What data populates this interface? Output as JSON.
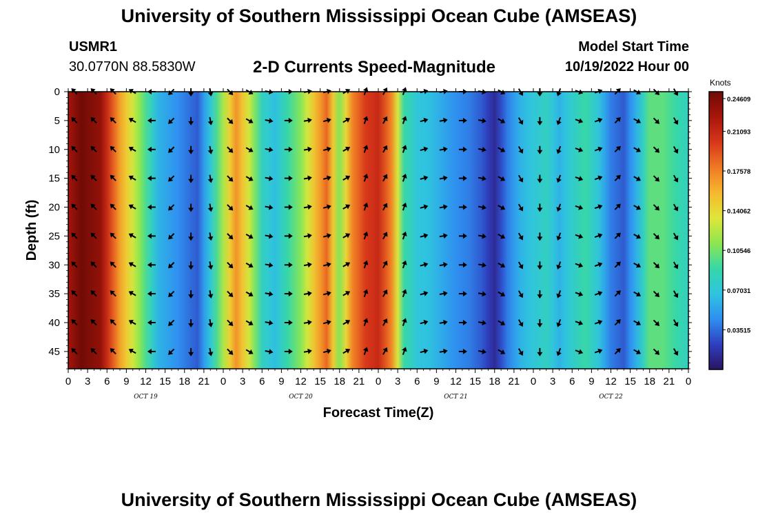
{
  "page": {
    "title": "University of Southern Mississippi Ocean Cube (AMSEAS)",
    "footer_title": "University of Southern Mississippi Ocean Cube (AMSEAS)",
    "station_id": "USMR1",
    "station_coords": "30.0770N  88.5830W",
    "plot_title": "2-D Currents Speed-Magnitude",
    "model_start_label": "Model Start Time",
    "model_start_value": "10/19/2022 Hour 00",
    "colorbar_title": "Knots"
  },
  "chart_data": {
    "type": "heatmap",
    "title": "2-D Currents Speed-Magnitude",
    "xlabel": "Forecast Time(Z)",
    "ylabel": "Depth (ft)",
    "x_hours_range": [
      0,
      96
    ],
    "ylim": [
      0,
      48
    ],
    "y_ticks": [
      0,
      5,
      10,
      15,
      20,
      25,
      30,
      35,
      40,
      45
    ],
    "x_tick_labels": [
      "0",
      "3",
      "6",
      "9",
      "12",
      "15",
      "18",
      "21",
      "0",
      "3",
      "6",
      "9",
      "12",
      "15",
      "18",
      "21",
      "0",
      "3",
      "6",
      "9",
      "12",
      "15",
      "18",
      "21",
      "0",
      "3",
      "6",
      "9",
      "12",
      "15",
      "18",
      "21",
      "0"
    ],
    "date_labels": [
      {
        "text": "OCT 19",
        "hour": 12
      },
      {
        "text": "OCT 20",
        "hour": 36
      },
      {
        "text": "OCT 21",
        "hour": 60
      },
      {
        "text": "OCT 22",
        "hour": 84
      }
    ],
    "colorbar": {
      "units": "Knots",
      "min": 0.0,
      "max": 0.246,
      "tick_values": [
        0.24609,
        0.21093,
        0.17578,
        0.14062,
        0.10546,
        0.07031,
        0.03515
      ],
      "tick_labels": [
        "0.24609",
        "0.21093",
        "0.17578",
        "0.14062",
        "0.10546",
        "0.07031",
        "0.03515"
      ],
      "colors": [
        "#2a1460",
        "#2f3fc0",
        "#2f8ff0",
        "#2fc4e0",
        "#36d7a8",
        "#8ee650",
        "#dfe63a",
        "#f6b82e",
        "#ef7a24",
        "#d8361a",
        "#a8160c",
        "#6e0b05"
      ]
    },
    "speed_by_hour": [
      {
        "hour": 0,
        "speed": 0.225
      },
      {
        "hour": 2,
        "speed": 0.245
      },
      {
        "hour": 5,
        "speed": 0.232
      },
      {
        "hour": 8,
        "speed": 0.165
      },
      {
        "hour": 10,
        "speed": 0.13
      },
      {
        "hour": 12,
        "speed": 0.095
      },
      {
        "hour": 14,
        "speed": 0.06
      },
      {
        "hour": 16,
        "speed": 0.05
      },
      {
        "hour": 18,
        "speed": 0.04
      },
      {
        "hour": 20,
        "speed": 0.03
      },
      {
        "hour": 22,
        "speed": 0.07
      },
      {
        "hour": 24,
        "speed": 0.12
      },
      {
        "hour": 26,
        "speed": 0.17
      },
      {
        "hour": 28,
        "speed": 0.13
      },
      {
        "hour": 30,
        "speed": 0.08
      },
      {
        "hour": 32,
        "speed": 0.065
      },
      {
        "hour": 34,
        "speed": 0.09
      },
      {
        "hour": 36,
        "speed": 0.11
      },
      {
        "hour": 38,
        "speed": 0.15
      },
      {
        "hour": 40,
        "speed": 0.185
      },
      {
        "hour": 42,
        "speed": 0.11
      },
      {
        "hour": 44,
        "speed": 0.175
      },
      {
        "hour": 46,
        "speed": 0.2
      },
      {
        "hour": 48,
        "speed": 0.21
      },
      {
        "hour": 50,
        "speed": 0.175
      },
      {
        "hour": 52,
        "speed": 0.09
      },
      {
        "hour": 54,
        "speed": 0.07
      },
      {
        "hour": 56,
        "speed": 0.065
      },
      {
        "hour": 58,
        "speed": 0.055
      },
      {
        "hour": 60,
        "speed": 0.045
      },
      {
        "hour": 62,
        "speed": 0.04
      },
      {
        "hour": 64,
        "speed": 0.03
      },
      {
        "hour": 66,
        "speed": 0.012
      },
      {
        "hour": 68,
        "speed": 0.04
      },
      {
        "hour": 70,
        "speed": 0.06
      },
      {
        "hour": 72,
        "speed": 0.07
      },
      {
        "hour": 74,
        "speed": 0.08
      },
      {
        "hour": 76,
        "speed": 0.06
      },
      {
        "hour": 78,
        "speed": 0.075
      },
      {
        "hour": 80,
        "speed": 0.09
      },
      {
        "hour": 82,
        "speed": 0.07
      },
      {
        "hour": 84,
        "speed": 0.04
      },
      {
        "hour": 86,
        "speed": 0.03
      },
      {
        "hour": 88,
        "speed": 0.06
      },
      {
        "hour": 90,
        "speed": 0.1
      },
      {
        "hour": 92,
        "speed": 0.1
      },
      {
        "hour": 94,
        "speed": 0.09
      },
      {
        "hour": 96,
        "speed": 0.08
      }
    ],
    "vectors": {
      "hours": [
        1,
        4,
        7,
        10,
        13,
        16,
        19,
        22,
        25,
        28,
        31,
        34,
        37,
        40,
        43,
        46,
        49,
        52,
        55,
        58,
        61,
        64,
        67,
        70,
        73,
        76,
        79,
        82,
        85,
        88,
        91,
        94
      ],
      "depths": [
        0,
        5,
        10,
        15,
        20,
        25,
        30,
        35,
        40,
        45
      ],
      "direction_deg_by_column": [
        315,
        315,
        315,
        300,
        270,
        225,
        180,
        170,
        135,
        120,
        100,
        90,
        80,
        75,
        60,
        20,
        30,
        20,
        75,
        80,
        90,
        100,
        120,
        150,
        180,
        200,
        110,
        70,
        45,
        120,
        135,
        150
      ],
      "note": "direction is compass bearing toward which current flows (0=up/north, 90=right/east)"
    }
  }
}
